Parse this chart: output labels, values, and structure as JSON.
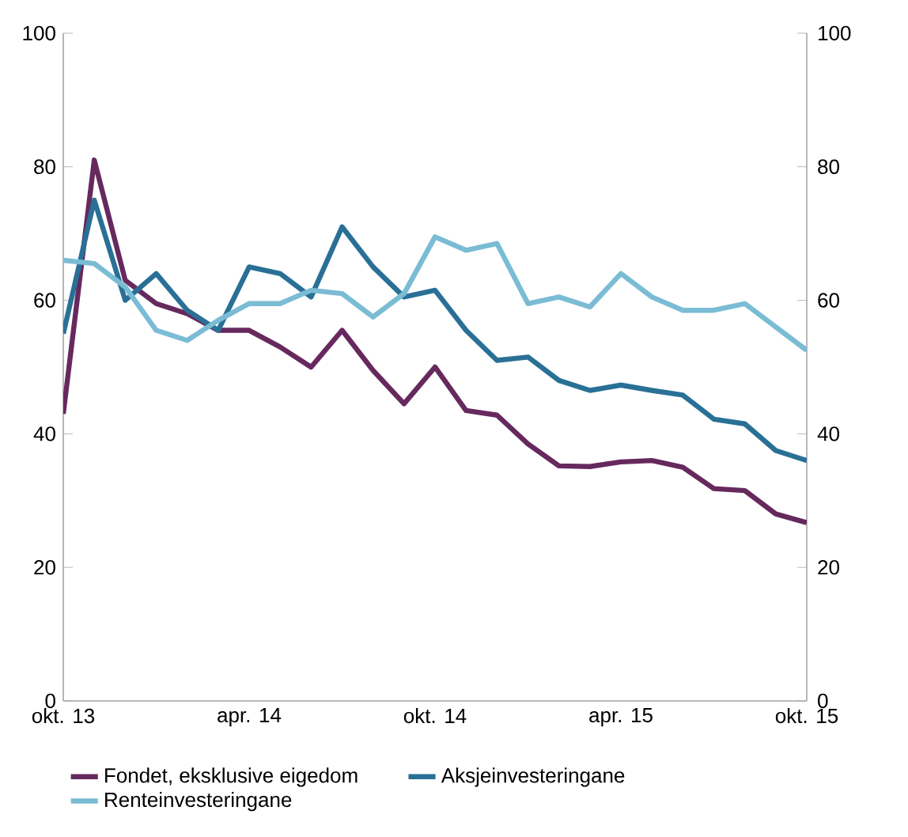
{
  "chart_data": {
    "type": "line",
    "x": [
      "2013-10",
      "2013-11",
      "2013-12",
      "2014-01",
      "2014-02",
      "2014-03",
      "2014-04",
      "2014-05",
      "2014-06",
      "2014-07",
      "2014-08",
      "2014-09",
      "2014-10",
      "2014-11",
      "2014-12",
      "2015-01",
      "2015-02",
      "2015-03",
      "2015-04",
      "2015-05",
      "2015-06",
      "2015-07",
      "2015-08",
      "2015-09",
      "2015-10"
    ],
    "series": [
      {
        "name": "Fondet, eksklusive eigedom",
        "color": "#66295e",
        "values": [
          43,
          81,
          63,
          59.5,
          58,
          55.5,
          55.5,
          53,
          50,
          55.5,
          49.5,
          44.5,
          50,
          43.5,
          42.8,
          38.5,
          35.2,
          35.1,
          35.8,
          36,
          35,
          31.8,
          31.5,
          28,
          26.7
        ]
      },
      {
        "name": "Aksjeinvesteringane",
        "color": "#2a7096",
        "values": [
          55,
          75,
          60,
          64,
          58.5,
          55.5,
          65,
          64,
          60.5,
          71,
          65,
          60.5,
          61.5,
          55.5,
          51,
          51.5,
          48,
          46.5,
          47.3,
          46.5,
          45.8,
          42.2,
          41.5,
          37.5,
          36
        ]
      },
      {
        "name": "Renteinvesteringane",
        "color": "#7bbcd5",
        "values": [
          66,
          65.5,
          62,
          55.5,
          54,
          57,
          59.5,
          59.5,
          61.5,
          61,
          57.5,
          61,
          69.5,
          67.5,
          68.5,
          59.5,
          60.5,
          59,
          64,
          60.5,
          58.5,
          58.5,
          59.5,
          56,
          52.5
        ]
      }
    ],
    "xlim": [
      "2013-10",
      "2015-10"
    ],
    "xticks": [
      {
        "value": "2013-10",
        "label": "okt. 13"
      },
      {
        "value": "2014-04",
        "label": "apr. 14"
      },
      {
        "value": "2014-10",
        "label": "okt. 14"
      },
      {
        "value": "2015-04",
        "label": "apr. 15"
      },
      {
        "value": "2015-10",
        "label": "okt. 15"
      }
    ],
    "ylim": [
      0,
      100
    ],
    "yticks": [
      0,
      20,
      40,
      60,
      80,
      100
    ],
    "y2lim": [
      0,
      100
    ],
    "y2ticks": [
      0,
      20,
      40,
      60,
      80,
      100
    ],
    "grid": false,
    "legend": "bottom",
    "marker": "none",
    "line_style": "solid"
  }
}
